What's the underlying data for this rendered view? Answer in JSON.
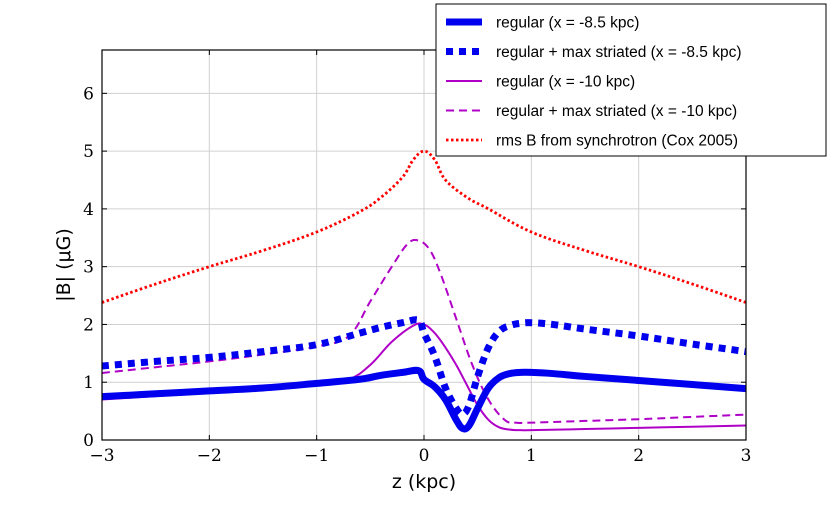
{
  "chart_data": {
    "type": "line",
    "title": "",
    "xlabel": "z (kpc)",
    "ylabel": "|B| (μG)",
    "xlim": [
      -3,
      3
    ],
    "ylim": [
      0,
      6.75
    ],
    "xticks": [
      -3,
      -2,
      -1,
      0,
      1,
      2,
      3
    ],
    "yticks": [
      0,
      1,
      2,
      3,
      4,
      5,
      6
    ],
    "xtick_labels": [
      "−3",
      "−2",
      "−1",
      "0",
      "1",
      "2",
      "3"
    ],
    "ytick_labels": [
      "0",
      "1",
      "2",
      "3",
      "4",
      "5",
      "6"
    ],
    "grid": true,
    "legend_position": "top-right",
    "series": [
      {
        "name": "regular (x = -8.5 kpc)",
        "color": "#0000ee",
        "style": "solid-thick",
        "x": [
          -3,
          -2.5,
          -2,
          -1.5,
          -1,
          -0.6,
          -0.4,
          -0.2,
          -0.05,
          0.0,
          0.1,
          0.2,
          0.3,
          0.36,
          0.42,
          0.5,
          0.6,
          0.7,
          0.8,
          0.9,
          1.0,
          1.2,
          1.5,
          2,
          2.5,
          3
        ],
        "y": [
          0.75,
          0.8,
          0.85,
          0.9,
          0.98,
          1.05,
          1.12,
          1.17,
          1.2,
          1.05,
          0.92,
          0.7,
          0.35,
          0.2,
          0.25,
          0.55,
          0.9,
          1.08,
          1.15,
          1.17,
          1.17,
          1.15,
          1.1,
          1.03,
          0.96,
          0.89
        ]
      },
      {
        "name": "regular + max striated (x = -8.5 kpc)",
        "color": "#0000ee",
        "style": "dotted-thick",
        "x": [
          -3,
          -2.5,
          -2,
          -1.5,
          -1,
          -0.6,
          -0.4,
          -0.2,
          -0.05,
          0.0,
          0.1,
          0.2,
          0.3,
          0.36,
          0.42,
          0.5,
          0.6,
          0.7,
          0.8,
          0.9,
          1.0,
          1.2,
          1.5,
          2,
          2.5,
          3
        ],
        "y": [
          1.28,
          1.36,
          1.43,
          1.53,
          1.65,
          1.85,
          1.95,
          2.03,
          2.07,
          1.85,
          1.45,
          0.9,
          0.55,
          0.45,
          0.6,
          1.1,
          1.6,
          1.88,
          1.98,
          2.02,
          2.03,
          2.0,
          1.92,
          1.8,
          1.66,
          1.53
        ]
      },
      {
        "name": "regular (x = -10 kpc)",
        "color": "#b000c8",
        "style": "solid",
        "x": [
          -3,
          -2.5,
          -2,
          -1.5,
          -1,
          -0.7,
          -0.5,
          -0.3,
          -0.1,
          0.0,
          0.1,
          0.2,
          0.3,
          0.4,
          0.5,
          0.6,
          0.7,
          0.8,
          0.9,
          1.0,
          1.5,
          2,
          2.5,
          3
        ],
        "y": [
          0.7,
          0.76,
          0.82,
          0.89,
          0.97,
          1.05,
          1.3,
          1.7,
          1.98,
          2.0,
          1.85,
          1.6,
          1.3,
          0.95,
          0.6,
          0.35,
          0.22,
          0.18,
          0.17,
          0.17,
          0.19,
          0.21,
          0.23,
          0.25
        ]
      },
      {
        "name": "regular + max striated (x = -10 kpc)",
        "color": "#b000c8",
        "style": "dashed",
        "x": [
          -3,
          -2.5,
          -2,
          -1.5,
          -1,
          -0.7,
          -0.5,
          -0.3,
          -0.15,
          -0.05,
          0.05,
          0.15,
          0.3,
          0.45,
          0.6,
          0.75,
          0.85,
          1.0,
          1.5,
          2,
          2.5,
          3
        ],
        "y": [
          1.16,
          1.26,
          1.36,
          1.48,
          1.62,
          1.8,
          2.4,
          3.0,
          3.4,
          3.45,
          3.3,
          2.9,
          2.1,
          1.3,
          0.7,
          0.35,
          0.3,
          0.3,
          0.33,
          0.36,
          0.4,
          0.44
        ]
      },
      {
        "name": "rms B from synchrotron (Cox 2005)",
        "color": "#ff0000",
        "style": "dotted-red",
        "x": [
          -3,
          -2.5,
          -2,
          -1.5,
          -1,
          -0.6,
          -0.4,
          -0.2,
          -0.1,
          0.0,
          0.1,
          0.2,
          0.4,
          0.6,
          1,
          1.5,
          2,
          2.5,
          3
        ],
        "y": [
          2.38,
          2.7,
          3.0,
          3.28,
          3.6,
          3.95,
          4.2,
          4.55,
          4.85,
          5.0,
          4.85,
          4.5,
          4.2,
          4.0,
          3.6,
          3.28,
          3.0,
          2.7,
          2.38
        ]
      }
    ]
  }
}
